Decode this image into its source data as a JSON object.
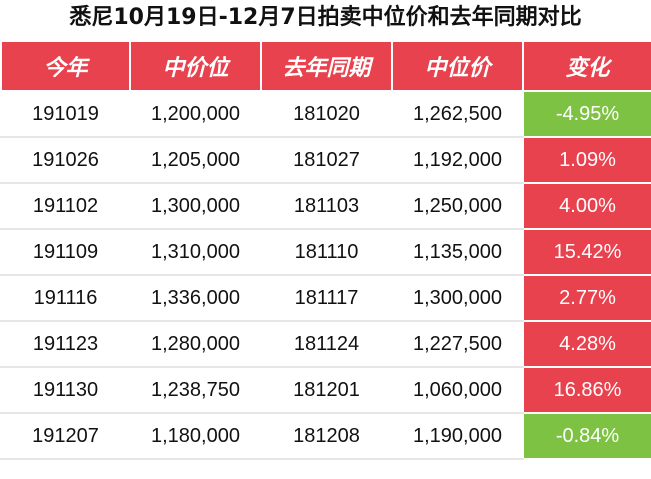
{
  "title": "悉尼10月19日-12月7日拍卖中位价和去年同期对比",
  "headers": [
    "今年",
    "中价位",
    "去年同期",
    "中位价",
    "变化"
  ],
  "colors": {
    "header": "#e8424f",
    "increase": "#e8424f",
    "decrease": "#7dc242"
  },
  "rows": [
    {
      "this_year": "191019",
      "median": "1,200,000",
      "last_year": "181020",
      "last_median": "1,262,500",
      "change": "-4.95%",
      "trend": "down"
    },
    {
      "this_year": "191026",
      "median": "1,205,000",
      "last_year": "181027",
      "last_median": "1,192,000",
      "change": "1.09%",
      "trend": "up"
    },
    {
      "this_year": "191102",
      "median": "1,300,000",
      "last_year": "181103",
      "last_median": "1,250,000",
      "change": "4.00%",
      "trend": "up"
    },
    {
      "this_year": "191109",
      "median": "1,310,000",
      "last_year": "181110",
      "last_median": "1,135,000",
      "change": "15.42%",
      "trend": "up"
    },
    {
      "this_year": "191116",
      "median": "1,336,000",
      "last_year": "181117",
      "last_median": "1,300,000",
      "change": "2.77%",
      "trend": "up"
    },
    {
      "this_year": "191123",
      "median": "1,280,000",
      "last_year": "181124",
      "last_median": "1,227,500",
      "change": "4.28%",
      "trend": "up"
    },
    {
      "this_year": "191130",
      "median": "1,238,750",
      "last_year": "181201",
      "last_median": "1,060,000",
      "change": "16.86%",
      "trend": "up"
    },
    {
      "this_year": "191207",
      "median": "1,180,000",
      "last_year": "181208",
      "last_median": "1,190,000",
      "change": "-0.84%",
      "trend": "down"
    }
  ]
}
